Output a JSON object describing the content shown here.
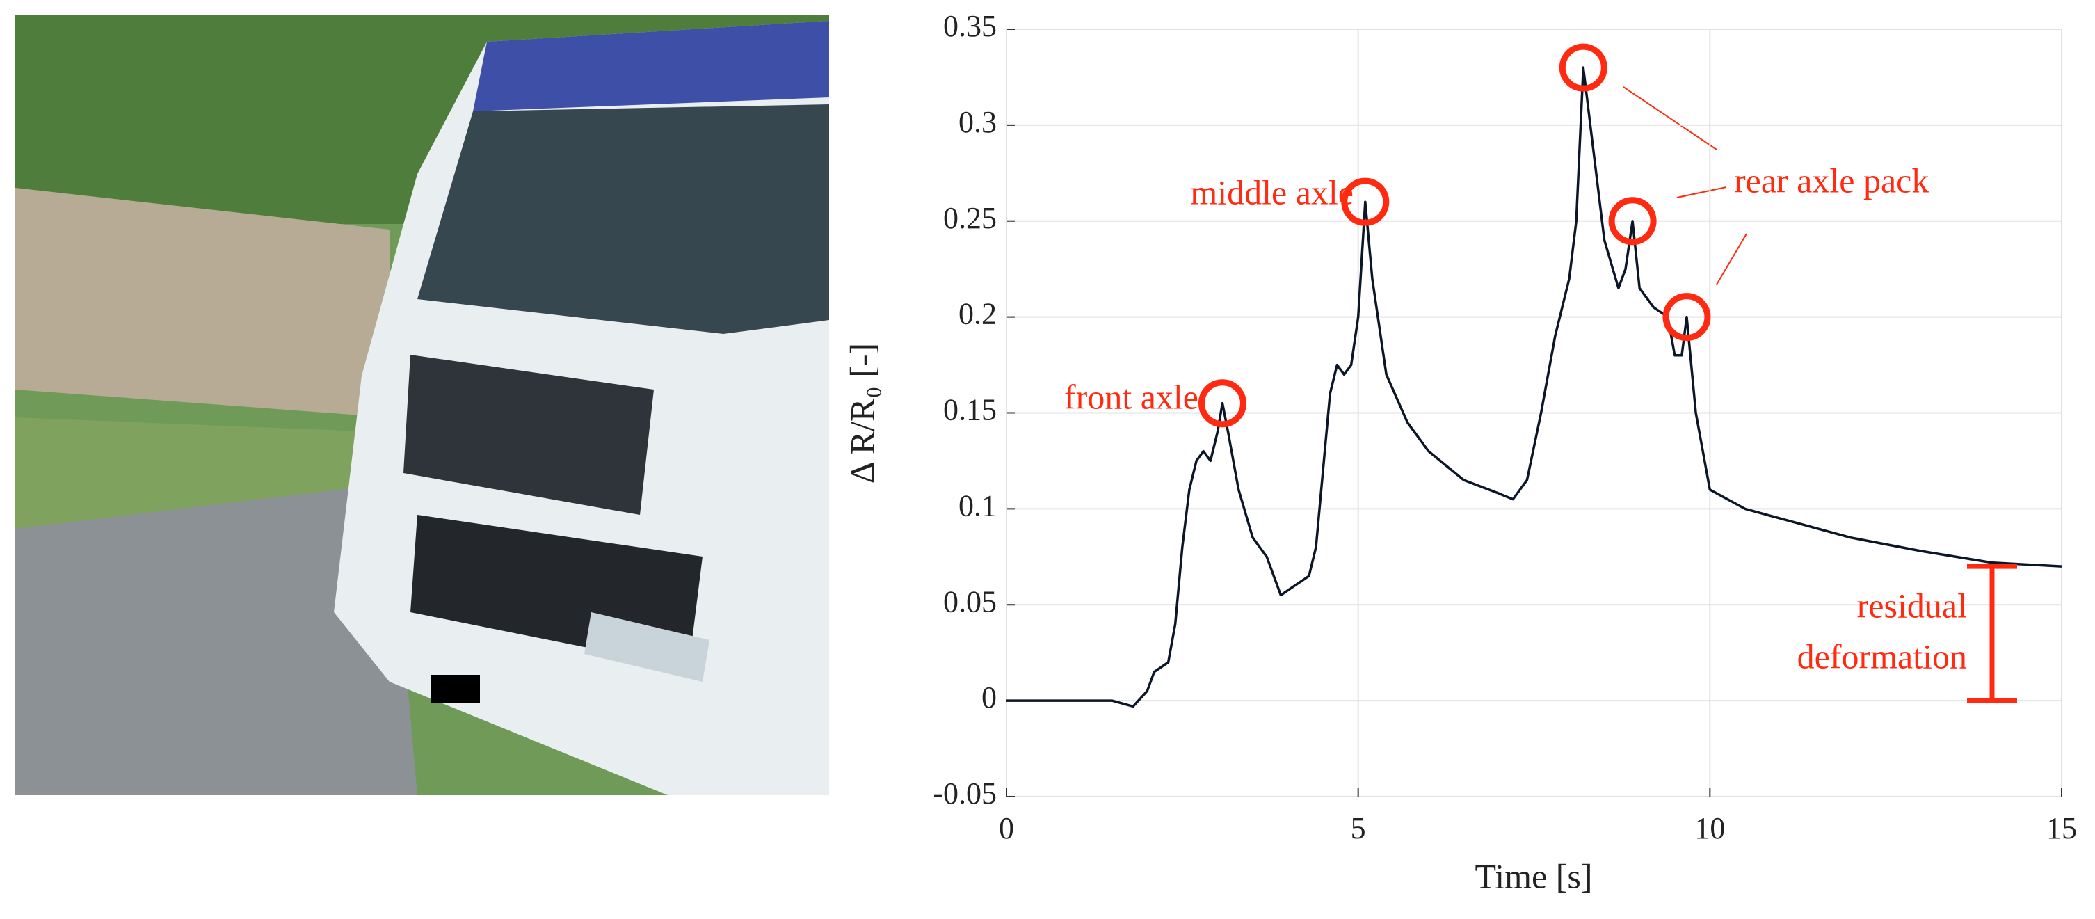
{
  "chart_data": {
    "type": "line",
    "x_label": "Time [s]",
    "y_label": "Δ R/R₀ [-]",
    "x": [
      0,
      0.5,
      1,
      1.5,
      1.8,
      2.0,
      2.1,
      2.3,
      2.4,
      2.5,
      2.6,
      2.7,
      2.8,
      2.9,
      3.0,
      3.07,
      3.15,
      3.3,
      3.5,
      3.7,
      3.9,
      4.1,
      4.3,
      4.4,
      4.5,
      4.6,
      4.7,
      4.8,
      4.9,
      5.0,
      5.1,
      5.2,
      5.4,
      5.7,
      6.0,
      6.5,
      7.0,
      7.2,
      7.4,
      7.6,
      7.8,
      8.0,
      8.1,
      8.2,
      8.3,
      8.5,
      8.7,
      8.8,
      8.9,
      9.0,
      9.2,
      9.4,
      9.5,
      9.6,
      9.67,
      9.8,
      10.0,
      10.5,
      11,
      12,
      13,
      14,
      15
    ],
    "values": [
      0,
      0,
      0,
      0,
      -0.003,
      0.005,
      0.015,
      0.02,
      0.04,
      0.08,
      0.11,
      0.125,
      0.13,
      0.125,
      0.14,
      0.155,
      0.14,
      0.11,
      0.085,
      0.075,
      0.055,
      0.06,
      0.065,
      0.08,
      0.12,
      0.16,
      0.175,
      0.17,
      0.175,
      0.2,
      0.26,
      0.22,
      0.17,
      0.145,
      0.13,
      0.115,
      0.108,
      0.105,
      0.115,
      0.15,
      0.19,
      0.22,
      0.25,
      0.33,
      0.3,
      0.24,
      0.215,
      0.225,
      0.25,
      0.215,
      0.205,
      0.2,
      0.18,
      0.18,
      0.2,
      0.15,
      0.11,
      0.1,
      0.095,
      0.085,
      0.078,
      0.072,
      0.07
    ],
    "color": "#0b1626",
    "xlim": [
      0,
      15
    ],
    "xticks": [
      0,
      5,
      10,
      15
    ],
    "ylim": [
      -0.05,
      0.35
    ],
    "yticks": [
      -0.05,
      0,
      0.05,
      0.1,
      0.15,
      0.2,
      0.25,
      0.3,
      0.35
    ],
    "grid": true,
    "annotation_color": "#ff2a10",
    "annotations": [
      {
        "text": "front axle",
        "points": [
          15
        ]
      },
      {
        "text": "middle axle",
        "points": [
          30
        ]
      },
      {
        "text": "rear axle pack",
        "points": [
          43,
          48,
          54
        ]
      }
    ],
    "residual": {
      "lines": [
        "residual",
        "deformation"
      ]
    }
  }
}
